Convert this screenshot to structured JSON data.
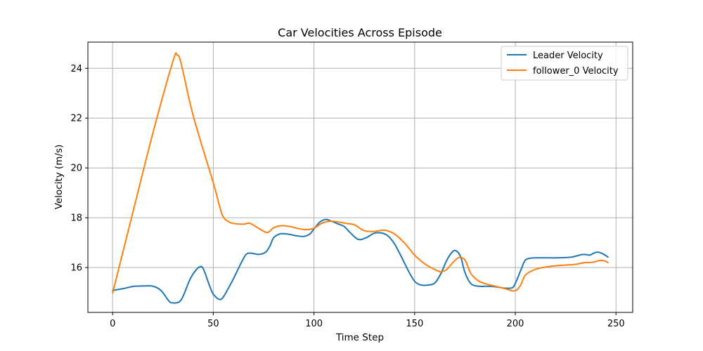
{
  "chart_data": {
    "type": "line",
    "title": "Car Velocities Across Episode",
    "xlabel": "Time Step",
    "ylabel": "Velocity (m/s)",
    "xlim": [
      -12.3,
      258.3
    ],
    "ylim": [
      14.2,
      25.05
    ],
    "xticks": [
      0,
      50,
      100,
      150,
      200,
      250
    ],
    "yticks": [
      16,
      18,
      20,
      22,
      24
    ],
    "grid": true,
    "legend_position": "top-right",
    "series": [
      {
        "name": "Leader Velocity",
        "color": "#1f77b4",
        "x": [
          0,
          5,
          10,
          15,
          20,
          24,
          28,
          30,
          33,
          35,
          38,
          40,
          43,
          45,
          48,
          50,
          53,
          55,
          58,
          60,
          63,
          66,
          68,
          70,
          73,
          76,
          78,
          80,
          83,
          85,
          88,
          91,
          95,
          98,
          100,
          103,
          106,
          109,
          112,
          115,
          118,
          122,
          126,
          130,
          134,
          137,
          140,
          143,
          147,
          150,
          153,
          157,
          160,
          163,
          166,
          169,
          171,
          173,
          175,
          178,
          182,
          186,
          190,
          194,
          197,
          199,
          201,
          203,
          205,
          208,
          212,
          216,
          220,
          224,
          228,
          231,
          233,
          235,
          237,
          239,
          241,
          243,
          245,
          246
        ],
        "values": [
          15.08,
          15.15,
          15.24,
          15.26,
          15.25,
          15.08,
          14.65,
          14.58,
          14.62,
          14.85,
          15.45,
          15.75,
          16.02,
          15.95,
          15.3,
          14.93,
          14.72,
          14.82,
          15.25,
          15.55,
          16.05,
          16.5,
          16.58,
          16.56,
          16.53,
          16.62,
          16.85,
          17.2,
          17.35,
          17.36,
          17.33,
          17.28,
          17.25,
          17.35,
          17.55,
          17.83,
          17.93,
          17.85,
          17.75,
          17.65,
          17.4,
          17.13,
          17.2,
          17.38,
          17.38,
          17.25,
          16.95,
          16.5,
          15.85,
          15.45,
          15.3,
          15.3,
          15.38,
          15.75,
          16.3,
          16.65,
          16.65,
          16.4,
          15.8,
          15.35,
          15.25,
          15.25,
          15.23,
          15.18,
          15.17,
          15.22,
          15.55,
          15.95,
          16.3,
          16.38,
          16.39,
          16.39,
          16.39,
          16.4,
          16.42,
          16.48,
          16.52,
          16.52,
          16.5,
          16.58,
          16.62,
          16.57,
          16.48,
          16.42
        ]
      },
      {
        "name": "follower_0 Velocity",
        "color": "#ff7f0e",
        "x": [
          0,
          10,
          20,
          30,
          32,
          34,
          40,
          50,
          53,
          55,
          58,
          60,
          65,
          68,
          72,
          76,
          78,
          80,
          84,
          88,
          92,
          96,
          100,
          104,
          108,
          112,
          116,
          120,
          125,
          130,
          135,
          140,
          145,
          150,
          155,
          160,
          163,
          166,
          169,
          172,
          175,
          178,
          182,
          186,
          190,
          194,
          197,
          199,
          201,
          203,
          205,
          210,
          215,
          220,
          225,
          230,
          233,
          235,
          237,
          239,
          241,
          243,
          245,
          246
        ],
        "values": [
          14.98,
          18.2,
          21.4,
          24.3,
          24.53,
          24.2,
          22.1,
          19.4,
          18.5,
          18.02,
          17.82,
          17.77,
          17.74,
          17.78,
          17.6,
          17.42,
          17.45,
          17.6,
          17.68,
          17.65,
          17.57,
          17.52,
          17.58,
          17.78,
          17.86,
          17.83,
          17.77,
          17.72,
          17.48,
          17.45,
          17.5,
          17.35,
          16.98,
          16.5,
          16.15,
          15.92,
          15.83,
          15.93,
          16.2,
          16.4,
          16.3,
          15.75,
          15.45,
          15.33,
          15.25,
          15.17,
          15.1,
          15.06,
          15.12,
          15.35,
          15.7,
          15.93,
          16.02,
          16.07,
          16.1,
          16.13,
          16.18,
          16.2,
          16.2,
          16.22,
          16.27,
          16.29,
          16.25,
          16.2
        ]
      }
    ]
  }
}
